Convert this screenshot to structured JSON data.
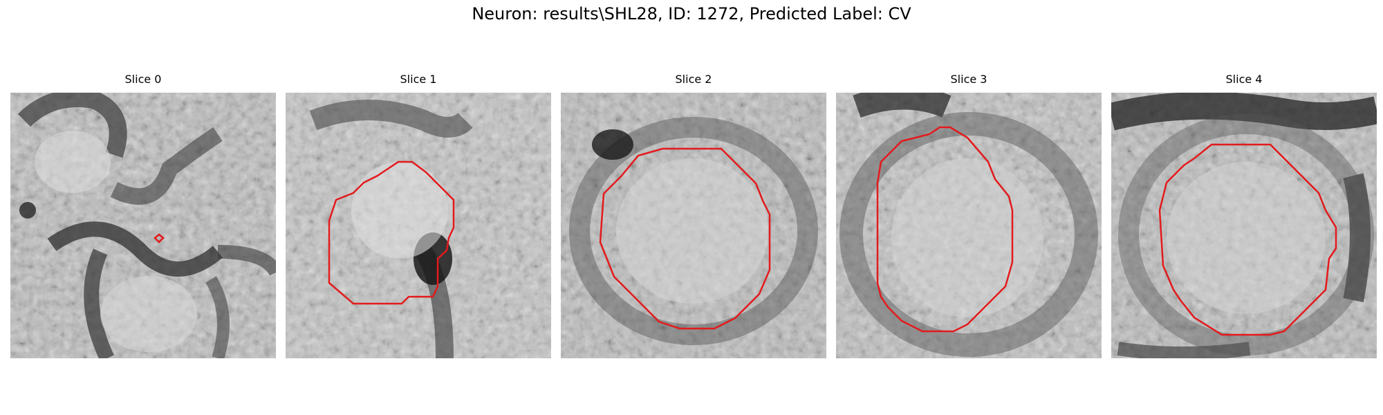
{
  "figure": {
    "title": "Neuron: results\\SHL28, ID: 1272, Predicted Label: CV",
    "contour_color": "#e31a1c",
    "panels": [
      {
        "label": "Slice 0"
      },
      {
        "label": "Slice 1"
      },
      {
        "label": "Slice 2"
      },
      {
        "label": "Slice 3"
      },
      {
        "label": "Slice 4"
      }
    ]
  }
}
